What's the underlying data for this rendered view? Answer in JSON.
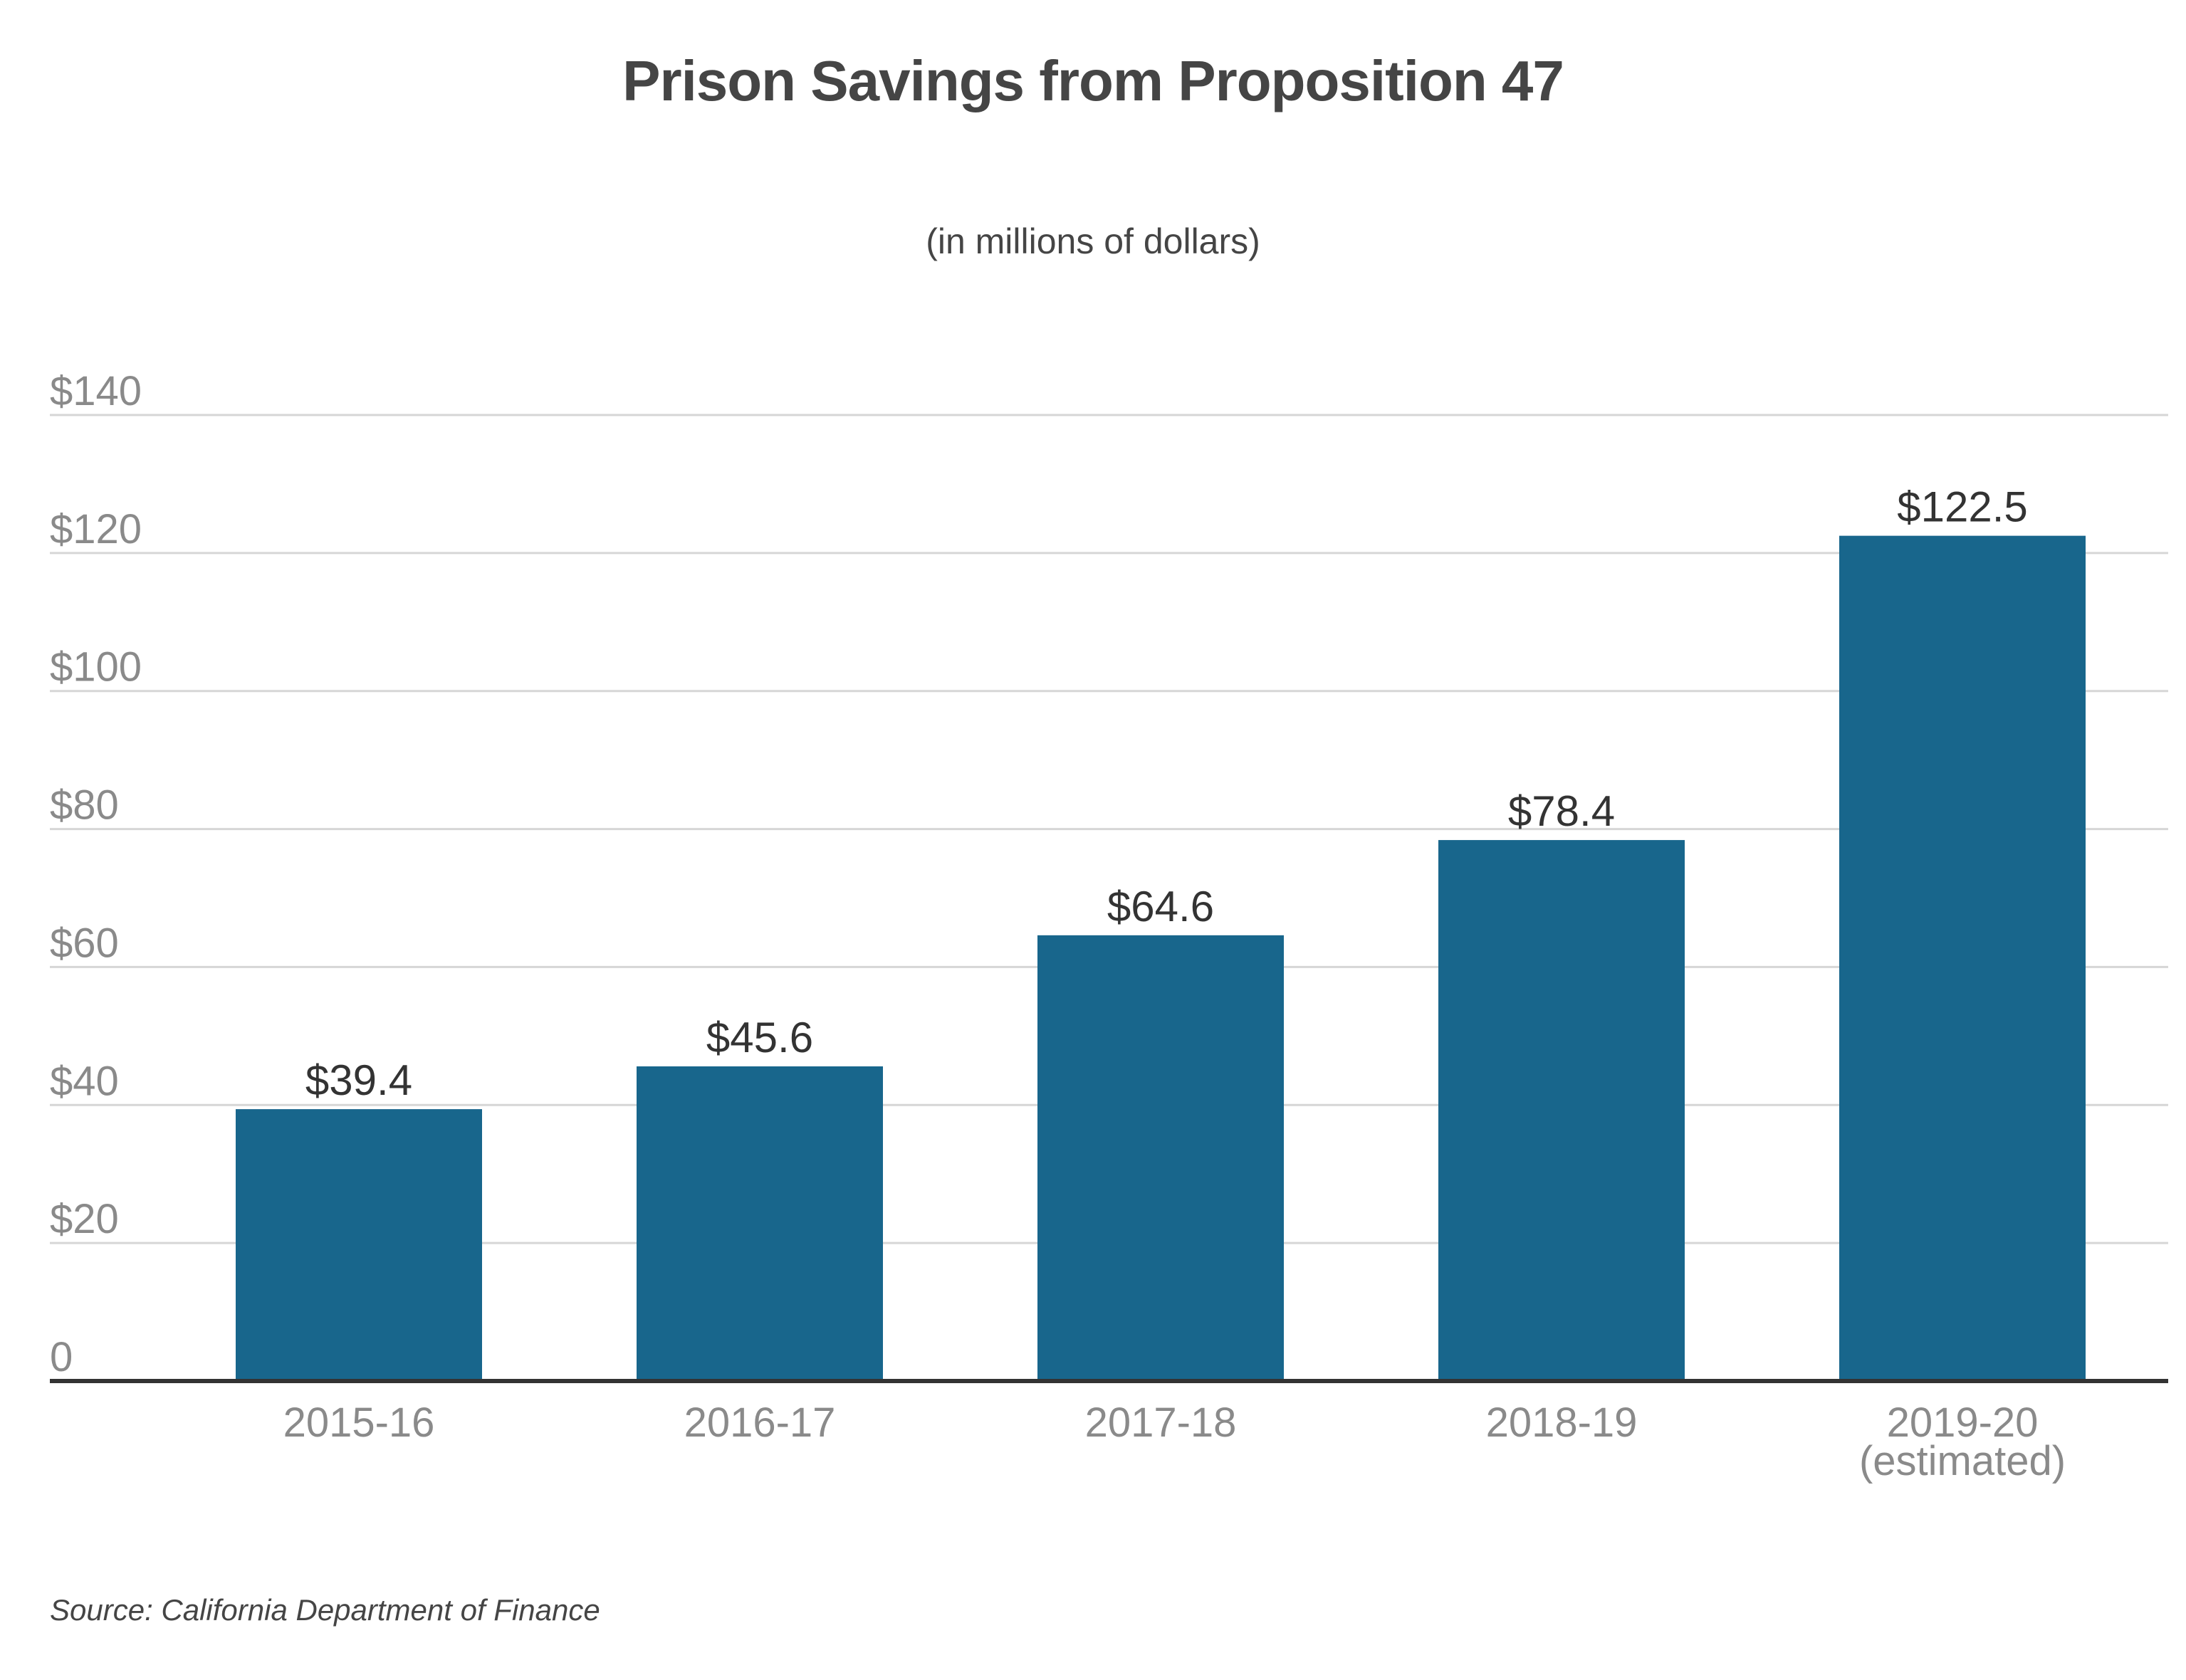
{
  "chart_data": {
    "type": "bar",
    "title": "Prison Savings from Proposition 47",
    "subtitle": "(in millions of dollars)",
    "categories": [
      "2015-16",
      "2016-17",
      "2017-18",
      "2018-19",
      "2019-20\n(estimated)"
    ],
    "values": [
      39.4,
      45.6,
      64.6,
      78.4,
      122.5
    ],
    "value_labels": [
      "$39.4",
      "$45.6",
      "$64.6",
      "$78.4",
      "$122.5"
    ],
    "ylim": [
      0,
      140
    ],
    "yticks": [
      0,
      20,
      40,
      60,
      80,
      100,
      120,
      140
    ],
    "ytick_labels": [
      "0",
      "$20",
      "$40",
      "$60",
      "$80",
      "$100",
      "$120",
      "$140"
    ],
    "grid": true,
    "legend": "none",
    "colors": {
      "bar": "#18668c",
      "grid": "#d6d6d6",
      "axis": "#333333",
      "tick_text": "#8a8a8a",
      "label_text": "#333333"
    }
  },
  "source": "Source: California Department of Finance"
}
